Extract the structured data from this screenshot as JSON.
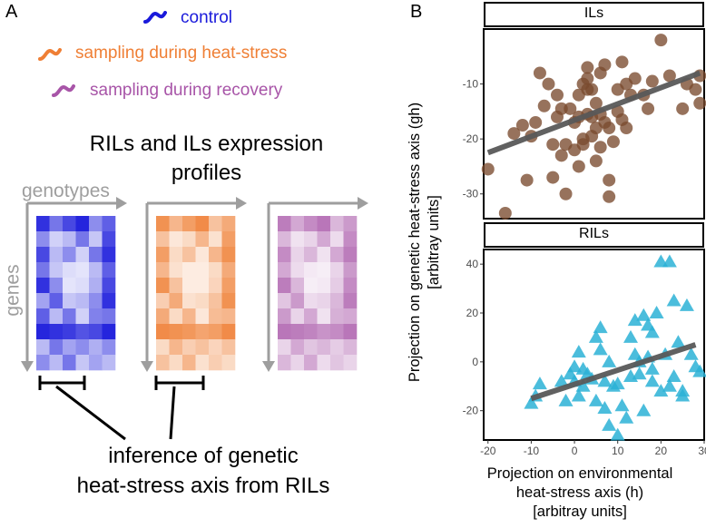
{
  "panel_a": {
    "letter": "A",
    "legend": [
      {
        "label": "control",
        "color": "#1a1adb"
      },
      {
        "label": "sampling during heat-stress",
        "color": "#ef7f35"
      },
      {
        "label": "sampling during recovery",
        "color": "#a855a8"
      }
    ],
    "heading_line1": "RILs and ILs expression",
    "heading_line2": "profiles",
    "x_axis_label": "genotypes",
    "y_axis_label": "genes",
    "caption_line1": "inference of genetic",
    "caption_line2": "heat-stress axis from RILs"
  },
  "panel_b": {
    "letter": "B",
    "y_label_line1": "Projection on genetic heat-stress axis (gh)",
    "y_label_line2": "[arbitray units]",
    "x_label_line1": "Projection on environmental",
    "x_label_line2": "heat-stress axis (h)",
    "x_label_line3": "[arbitray units]",
    "colors": {
      "ils": "#7a4a2e",
      "rils": "#2cb1d6",
      "fit": "#595959"
    }
  },
  "chart_data": [
    {
      "type": "scatter",
      "title": "ILs",
      "xlabel": "Projection on environmental heat-stress axis (h) [arbitray units]",
      "ylabel": "Projection on genetic heat-stress axis (gh) [arbitray units]",
      "xlim": [
        -21,
        30
      ],
      "ylim": [
        -34.5,
        0
      ],
      "xticks": [
        -20,
        -10,
        0,
        10,
        20,
        30
      ],
      "yticks": [
        -30,
        -20,
        -10
      ],
      "yticklabels": [
        "-30",
        "-20",
        "-10"
      ],
      "marker": "circle",
      "fit_line": {
        "x": [
          -20,
          29
        ],
        "y": [
          -22.5,
          -8
        ]
      },
      "x": [
        -20,
        -16,
        -14,
        -12,
        -11,
        -10,
        -9,
        -8,
        -7,
        -6,
        -5,
        -5,
        -4,
        -3,
        -3,
        -2,
        -2,
        -1,
        0,
        0,
        1,
        1,
        1,
        2,
        2,
        3,
        3,
        3,
        4,
        4,
        4,
        5,
        5,
        5,
        6,
        6,
        7,
        8,
        8,
        9,
        10,
        10,
        11,
        12,
        12,
        14,
        16,
        17,
        18,
        20,
        22,
        25,
        26,
        28,
        29,
        29,
        6,
        7,
        -4,
        2,
        3,
        8,
        11,
        13
      ],
      "y": [
        -25.5,
        -33.5,
        -19,
        -17.5,
        -27.5,
        -19.5,
        -17,
        -8,
        -14,
        -10,
        -21,
        -27,
        -12,
        -14.5,
        -23,
        -21,
        -30,
        -14.5,
        -17,
        -22,
        -16,
        -12,
        -25,
        -10,
        -21,
        -11,
        -9,
        -15.5,
        -11,
        -16,
        -19.5,
        -13.5,
        -18,
        -24,
        -8,
        -21.5,
        -17,
        -30.5,
        -27.5,
        -20.5,
        -15,
        -11,
        -16.5,
        -18,
        -10,
        -9,
        -12,
        -14.5,
        -9.5,
        -2,
        -8.5,
        -14.5,
        -10,
        -11,
        -8.5,
        -13.5,
        -15.5,
        -6.5,
        -16,
        -20,
        -7,
        -18,
        -6,
        -12
      ]
    },
    {
      "type": "scatter",
      "title": "RILs",
      "xlabel": "Projection on environmental heat-stress axis (h) [arbitray units]",
      "ylabel": "Projection on genetic heat-stress axis (gh) [arbitray units]",
      "xlim": [
        -21,
        30
      ],
      "ylim": [
        -32,
        46
      ],
      "xticks": [
        -20,
        -10,
        0,
        10,
        20,
        30
      ],
      "xticklabels": [
        "-20",
        "-10",
        "0",
        "10",
        "20",
        "30"
      ],
      "yticks": [
        -20,
        0,
        20,
        40
      ],
      "yticklabels": [
        "-20",
        "0",
        "20",
        "40"
      ],
      "marker": "triangle",
      "fit_line": {
        "x": [
          -10,
          28
        ],
        "y": [
          -15,
          7
        ]
      },
      "x": [
        -10,
        -9,
        -8,
        -3,
        -2,
        -1,
        0,
        0,
        1,
        1,
        2,
        2,
        3,
        4,
        5,
        5,
        6,
        6,
        7,
        7,
        8,
        8,
        9,
        10,
        10,
        11,
        12,
        13,
        14,
        14,
        15,
        15,
        16,
        16,
        17,
        17,
        18,
        18,
        19,
        20,
        20,
        21,
        22,
        22,
        23,
        23,
        24,
        25,
        25,
        26,
        27,
        28,
        29,
        13,
        18
      ],
      "y": [
        -17,
        -14,
        -9,
        -8,
        -16,
        -5,
        -2,
        -8,
        -14,
        4,
        -3,
        -10,
        -5,
        -7,
        -16,
        10,
        14,
        5,
        -19,
        -8,
        -26,
        0,
        -10,
        -30,
        -9,
        -18,
        -23,
        -6,
        17,
        3,
        -5,
        0,
        19,
        -20,
        15,
        2,
        -8,
        12,
        20,
        41,
        -12,
        3,
        -10,
        41,
        25,
        -6,
        8,
        -12,
        -14,
        23,
        3,
        -2,
        -4,
        10,
        -3
      ]
    }
  ]
}
